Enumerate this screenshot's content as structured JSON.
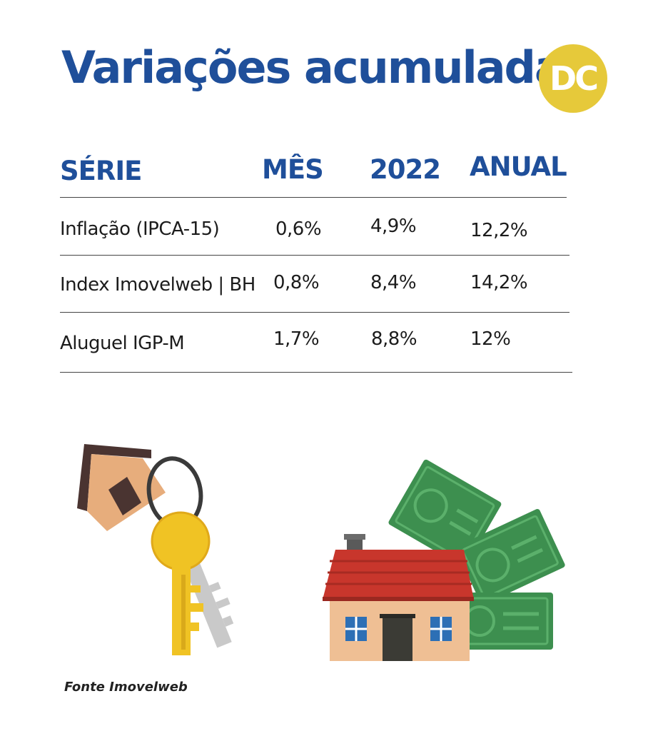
{
  "header": {
    "title": "Variações acumuladas",
    "logo_text": "DC"
  },
  "colors": {
    "title_blue": "#1f4f9a",
    "logo_yellow": "#e6c93a",
    "text": "#1c1c1c",
    "money_green": "#3d8f4f",
    "roof_red": "#c8362c",
    "key_yellow": "#f0c324",
    "key_gray": "#c9c9c9"
  },
  "chart_data": {
    "type": "table",
    "columns": [
      "SÉRIE",
      "MÊS",
      "2022",
      "ANUAL"
    ],
    "rows": [
      [
        "Inflação (IPCA-15)",
        "0,6%",
        "4,9%",
        "12,2%"
      ],
      [
        "Index Imovelweb | BH",
        "0,8%",
        "8,4%",
        "14,2%"
      ],
      [
        "Aluguel IGP-M",
        "1,7%",
        "8,8%",
        "12%"
      ]
    ]
  },
  "illustrations": {
    "left": "house-keychain-icon",
    "right": "house-with-money-icon"
  },
  "footer": {
    "source": "Fonte Imovelweb"
  }
}
